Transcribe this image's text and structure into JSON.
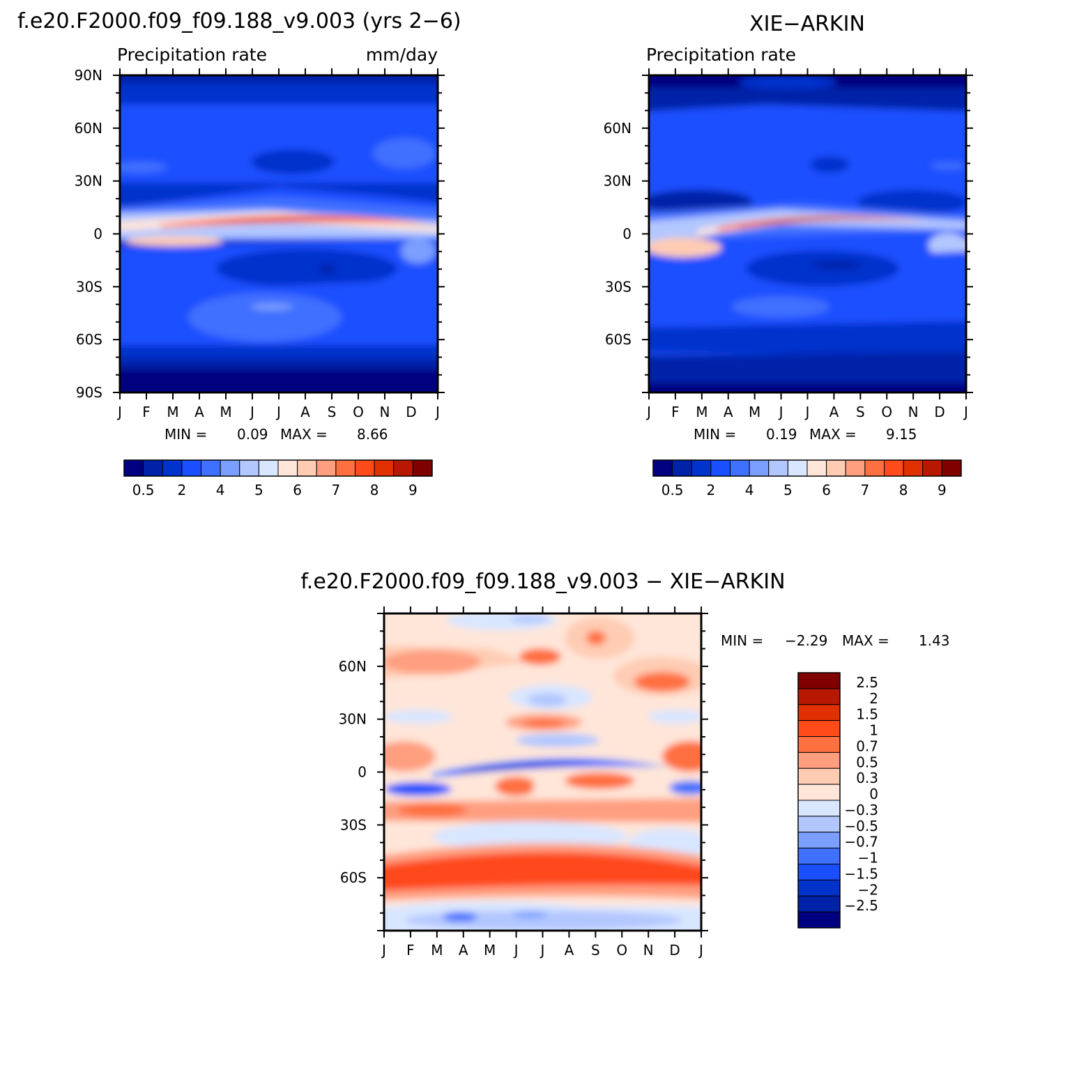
{
  "chart_data": [
    {
      "type": "heatmap",
      "title": "f.e20.F2000.f09_f09.188_v9.003 (yrs 2−6)",
      "subtitle": "Precipitation rate",
      "units": "mm/day",
      "x_ticks": [
        "J",
        "F",
        "M",
        "A",
        "M",
        "J",
        "J",
        "A",
        "S",
        "O",
        "N",
        "D",
        "J"
      ],
      "y_ticks": [
        "90N",
        "60N",
        "30N",
        "0",
        "30S",
        "60S",
        "90S"
      ],
      "ylim": [
        -90,
        90
      ],
      "min_label": "MIN =",
      "min_value": "0.09",
      "max_label": "MAX =",
      "max_value": "8.66",
      "levels": [
        "0.5",
        "2",
        "4",
        "5",
        "6",
        "7",
        "8",
        "9"
      ],
      "colors": [
        "#000080",
        "#0022a8",
        "#0033cc",
        "#1a4fff",
        "#4070ff",
        "#7a9fff",
        "#b3c7ff",
        "#d9e6ff",
        "#ffe6d9",
        "#ffccb3",
        "#ff9f80",
        "#ff7040",
        "#ff4a1a",
        "#e03000",
        "#b81800",
        "#800000"
      ],
      "itcz_peak_mm_day": 8.66
    },
    {
      "type": "heatmap",
      "title": "XIE−ARKIN",
      "subtitle": "Precipitation rate",
      "x_ticks": [
        "J",
        "F",
        "M",
        "A",
        "M",
        "J",
        "J",
        "A",
        "S",
        "O",
        "N",
        "D",
        "J"
      ],
      "y_ticks": [
        "60N",
        "30N",
        "0",
        "30S",
        "60S"
      ],
      "ylim": [
        -90,
        90
      ],
      "min_label": "MIN =",
      "min_value": "0.19",
      "max_label": "MAX =",
      "max_value": "9.15",
      "levels": [
        "0.5",
        "2",
        "4",
        "5",
        "6",
        "7",
        "8",
        "9"
      ],
      "colors": [
        "#000080",
        "#0022a8",
        "#0033cc",
        "#1a4fff",
        "#4070ff",
        "#7a9fff",
        "#b3c7ff",
        "#d9e6ff",
        "#ffe6d9",
        "#ffccb3",
        "#ff9f80",
        "#ff7040",
        "#ff4a1a",
        "#e03000",
        "#b81800",
        "#800000"
      ],
      "itcz_peak_mm_day": 9.15
    },
    {
      "type": "heatmap",
      "title": "f.e20.F2000.f09_f09.188_v9.003 − XIE−ARKIN",
      "x_ticks": [
        "J",
        "F",
        "M",
        "A",
        "M",
        "J",
        "J",
        "A",
        "S",
        "O",
        "N",
        "D",
        "J"
      ],
      "y_ticks": [
        "60N",
        "30N",
        "0",
        "30S",
        "60S"
      ],
      "ylim": [
        -90,
        90
      ],
      "min_label": "MIN =",
      "min_value": "−2.29",
      "max_label": "MAX =",
      "max_value": "1.43",
      "levels": [
        "2.5",
        "2",
        "1.5",
        "1",
        "0.7",
        "0.5",
        "0.3",
        "0",
        "−0.3",
        "−0.5",
        "−0.7",
        "−1",
        "−1.5",
        "−2",
        "−2.5"
      ],
      "colors": [
        "#800000",
        "#b81800",
        "#e03000",
        "#ff4a1a",
        "#ff7040",
        "#ff9f80",
        "#ffccb3",
        "#ffe6d9",
        "#d9e6ff",
        "#b3c7ff",
        "#7a9fff",
        "#4070ff",
        "#1a4fff",
        "#0033cc",
        "#0022a8",
        "#000080"
      ]
    }
  ]
}
